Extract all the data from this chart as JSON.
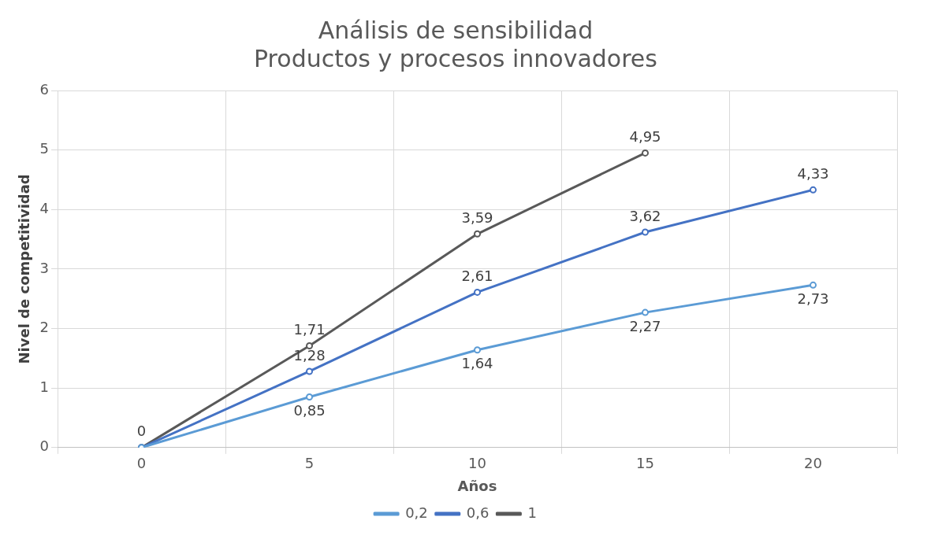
{
  "chart_data": {
    "type": "line",
    "title": "Análisis de sensibilidad",
    "subtitle": "Productos y procesos innovadores",
    "xlabel": "Años",
    "ylabel": "Nivel de competitividad",
    "categories": [
      "0",
      "5",
      "10",
      "15",
      "20"
    ],
    "series": [
      {
        "name": "0,2",
        "color": "#5b9bd5",
        "values": [
          0,
          0.85,
          1.64,
          2.27,
          2.73
        ],
        "value_labels": [
          null,
          "0,85",
          "1,64",
          "2,27",
          "2,73"
        ]
      },
      {
        "name": "0,6",
        "color": "#4472c4",
        "values": [
          0,
          1.28,
          2.61,
          3.62,
          4.33
        ],
        "value_labels": [
          null,
          "1,28",
          "2,61",
          "3,62",
          "4,33"
        ]
      },
      {
        "name": "1",
        "color": "#595959",
        "values": [
          0,
          1.71,
          3.59,
          4.95,
          null
        ],
        "value_labels": [
          "0",
          "1,71",
          "3,59",
          "4,95",
          null
        ]
      }
    ],
    "ylim": [
      0,
      6
    ],
    "yticks": [
      0,
      1,
      2,
      3,
      4,
      5,
      6
    ],
    "grid": true,
    "legend": "bottom",
    "marker": "circle",
    "line_style": "solid"
  }
}
